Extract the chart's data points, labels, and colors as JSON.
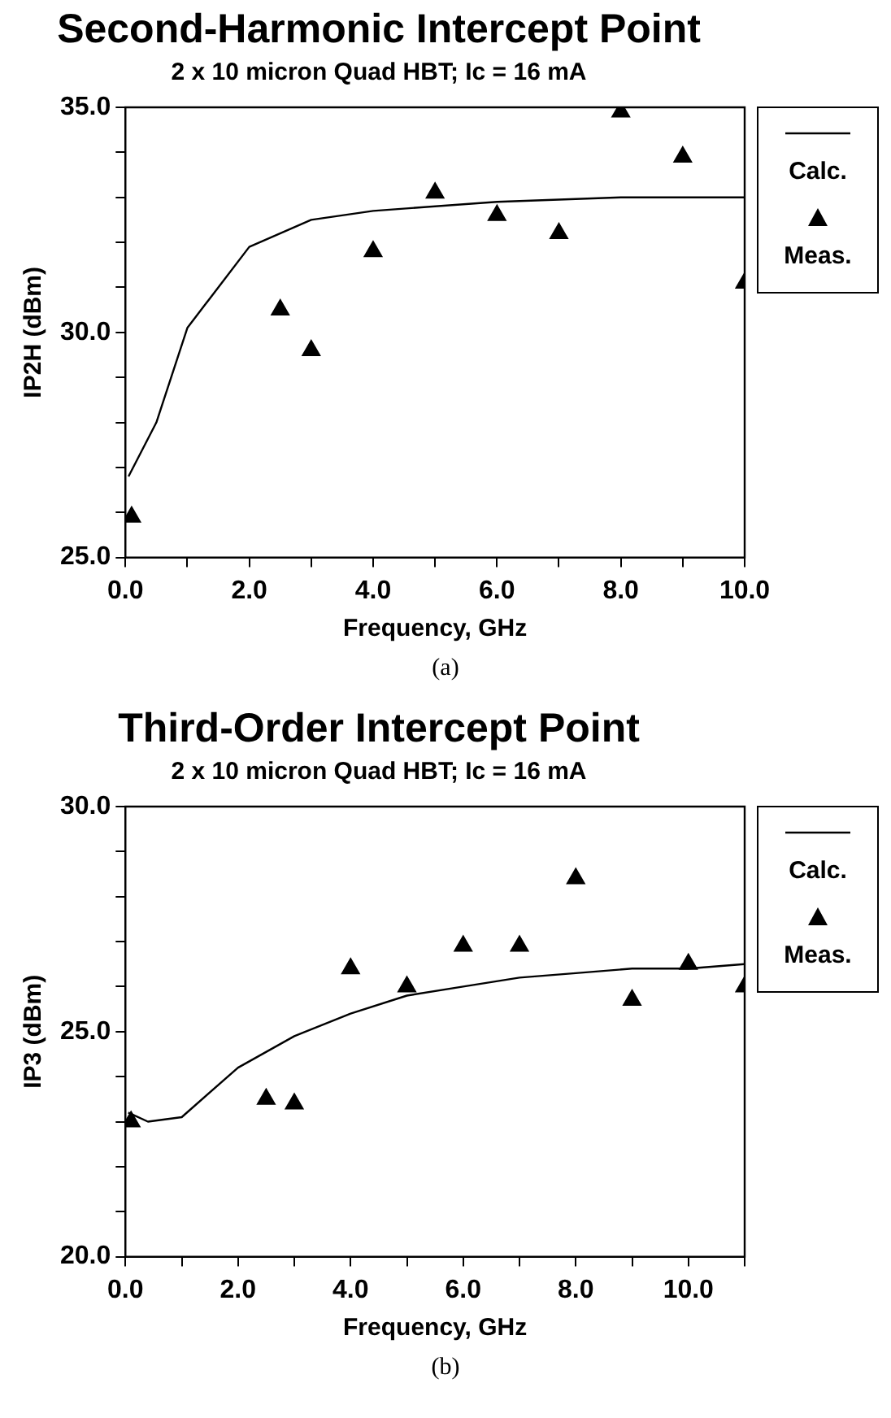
{
  "chart_data": [
    {
      "type": "line",
      "title": "Second-Harmonic Intercept Point",
      "subtitle": "2 x 10 micron Quad HBT; Ic = 16 mA",
      "xlabel": "Frequency, GHz",
      "ylabel": "IP2H (dBm)",
      "annotations": [
        "(a)"
      ],
      "xlim": [
        0,
        10
      ],
      "xticks": [
        {
          "value": 0,
          "label": "0.0"
        },
        {
          "value": 1,
          "label": null
        },
        {
          "value": 2,
          "label": "2.0"
        },
        {
          "value": 3,
          "label": null
        },
        {
          "value": 4,
          "label": "4.0"
        },
        {
          "value": 5,
          "label": null
        },
        {
          "value": 6,
          "label": "6.0"
        },
        {
          "value": 7,
          "label": null
        },
        {
          "value": 8,
          "label": "8.0"
        },
        {
          "value": 9,
          "label": null
        },
        {
          "value": 10,
          "label": "10.0"
        }
      ],
      "ylim": [
        25,
        35
      ],
      "yticks": [
        {
          "value": 25,
          "label": "25.0"
        },
        {
          "value": 26,
          "label": null
        },
        {
          "value": 27,
          "label": null
        },
        {
          "value": 28,
          "label": null
        },
        {
          "value": 29,
          "label": null
        },
        {
          "value": 30,
          "label": "30.0"
        },
        {
          "value": 31,
          "label": null
        },
        {
          "value": 32,
          "label": null
        },
        {
          "value": 33,
          "label": null
        },
        {
          "value": 34,
          "label": null
        },
        {
          "value": 35,
          "label": "35.0"
        }
      ],
      "legend": "right",
      "series": [
        {
          "name": "Calc.",
          "type": "line",
          "marker": "none",
          "color": "#000000",
          "x": [
            0.05,
            0.5,
            1,
            1.5,
            2,
            3,
            4,
            6,
            8,
            10
          ],
          "values": [
            26.8,
            28.0,
            30.1,
            31.0,
            31.9,
            32.5,
            32.7,
            32.9,
            33.0,
            33.0
          ]
        },
        {
          "name": "Meas.",
          "type": "scatter",
          "marker": "triangle",
          "color": "#000000",
          "x": [
            0.1,
            2.5,
            3,
            4,
            5,
            6,
            7,
            8,
            9,
            10
          ],
          "values": [
            25.9,
            30.5,
            29.6,
            31.8,
            33.1,
            32.6,
            32.2,
            34.9,
            33.9,
            31.1
          ]
        }
      ]
    },
    {
      "type": "line",
      "title": "Third-Order Intercept Point",
      "subtitle": "2 x 10 micron Quad HBT; Ic = 16 mA",
      "xlabel": "Frequency, GHz",
      "ylabel": "IP3 (dBm)",
      "annotations": [
        "(b)"
      ],
      "xlim": [
        0,
        11
      ],
      "xticks": [
        {
          "value": 0,
          "label": "0.0"
        },
        {
          "value": 1,
          "label": null
        },
        {
          "value": 2,
          "label": "2.0"
        },
        {
          "value": 3,
          "label": null
        },
        {
          "value": 4,
          "label": "4.0"
        },
        {
          "value": 5,
          "label": null
        },
        {
          "value": 6,
          "label": "6.0"
        },
        {
          "value": 7,
          "label": null
        },
        {
          "value": 8,
          "label": "8.0"
        },
        {
          "value": 9,
          "label": null
        },
        {
          "value": 10,
          "label": "10.0"
        },
        {
          "value": 11,
          "label": null
        }
      ],
      "ylim": [
        20,
        30
      ],
      "yticks": [
        {
          "value": 20,
          "label": "20.0"
        },
        {
          "value": 21,
          "label": null
        },
        {
          "value": 22,
          "label": null
        },
        {
          "value": 23,
          "label": null
        },
        {
          "value": 24,
          "label": null
        },
        {
          "value": 25,
          "label": "25.0"
        },
        {
          "value": 26,
          "label": null
        },
        {
          "value": 27,
          "label": null
        },
        {
          "value": 28,
          "label": null
        },
        {
          "value": 29,
          "label": null
        },
        {
          "value": 30,
          "label": "30.0"
        }
      ],
      "legend": "right",
      "series": [
        {
          "name": "Calc.",
          "type": "line",
          "marker": "none",
          "color": "#000000",
          "x": [
            0.05,
            0.4,
            1,
            2,
            3,
            4,
            5,
            6,
            7,
            8,
            9,
            10,
            11
          ],
          "values": [
            23.2,
            23.0,
            23.1,
            24.2,
            24.9,
            25.4,
            25.8,
            26.0,
            26.2,
            26.3,
            26.4,
            26.4,
            26.5
          ]
        },
        {
          "name": "Meas.",
          "type": "scatter",
          "marker": "triangle",
          "color": "#000000",
          "x": [
            0.1,
            2.5,
            3,
            4,
            5,
            6,
            7,
            8,
            9,
            10,
            11
          ],
          "values": [
            23.0,
            23.5,
            23.4,
            26.4,
            26.0,
            26.9,
            26.9,
            28.4,
            25.7,
            26.5,
            26.0
          ]
        }
      ]
    }
  ]
}
